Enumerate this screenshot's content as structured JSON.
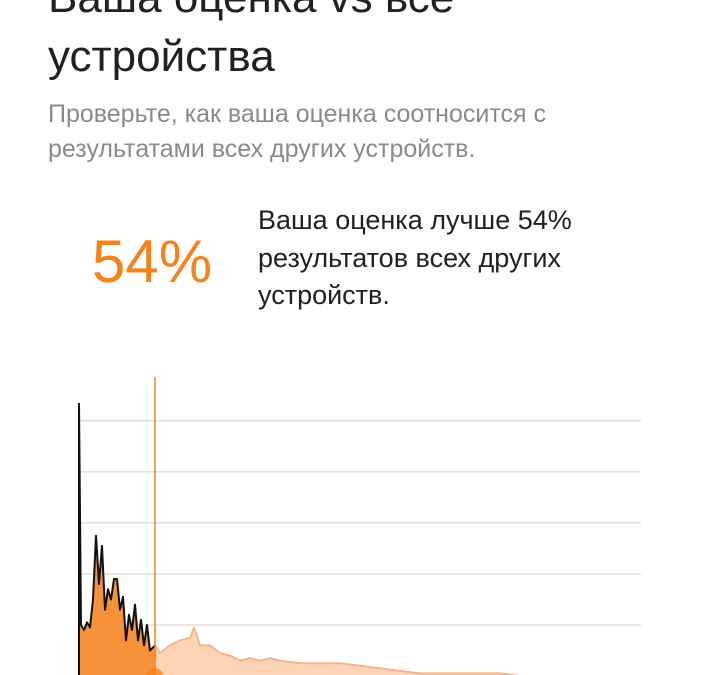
{
  "header": {
    "title_lines": [
      "Ваша оценка vs все",
      "устройства"
    ],
    "subtitle_lines": [
      "Проверьте, как ваша оценка соотносится с",
      "результатами всех других устройств."
    ]
  },
  "score": {
    "percent_text": "54%",
    "description_lines": [
      "Ваша оценка лучше 54%",
      "результатов всех других",
      "устройств."
    ]
  },
  "chart_data": {
    "type": "area",
    "x": [
      0,
      2,
      5,
      8,
      11,
      14,
      17,
      20,
      23,
      26,
      29,
      32,
      35,
      38,
      41,
      44,
      47,
      50,
      53,
      56,
      59,
      62,
      65,
      68,
      71,
      76,
      81,
      91,
      101,
      111,
      115,
      121,
      131,
      141,
      151,
      161,
      171,
      181,
      191,
      201,
      221,
      241,
      261,
      281,
      301,
      321,
      341,
      361,
      381,
      401,
      421,
      441,
      481,
      521,
      561
    ],
    "values": [
      107,
      20,
      18,
      21,
      19,
      30,
      55,
      36,
      51,
      26,
      34,
      30,
      38,
      38,
      26,
      31,
      14,
      24,
      18,
      28,
      14,
      22,
      12,
      20,
      10,
      12,
      9,
      12,
      14,
      15,
      19,
      12,
      12,
      9,
      8,
      6,
      7,
      6,
      7,
      6,
      5,
      5,
      5,
      4,
      3,
      2,
      1,
      1,
      1,
      1,
      1,
      0,
      0,
      0,
      0
    ],
    "score_x": 76,
    "xlim": [
      0,
      562
    ],
    "ylim": [
      0,
      107
    ],
    "yticks": [
      20,
      40,
      60,
      80,
      100
    ],
    "grid": true,
    "colors": {
      "below": "#f7923a",
      "above": "#fdd5b6",
      "line_below": "#111111",
      "line_above": "#f4b58c",
      "marker": "#f5821f"
    }
  }
}
